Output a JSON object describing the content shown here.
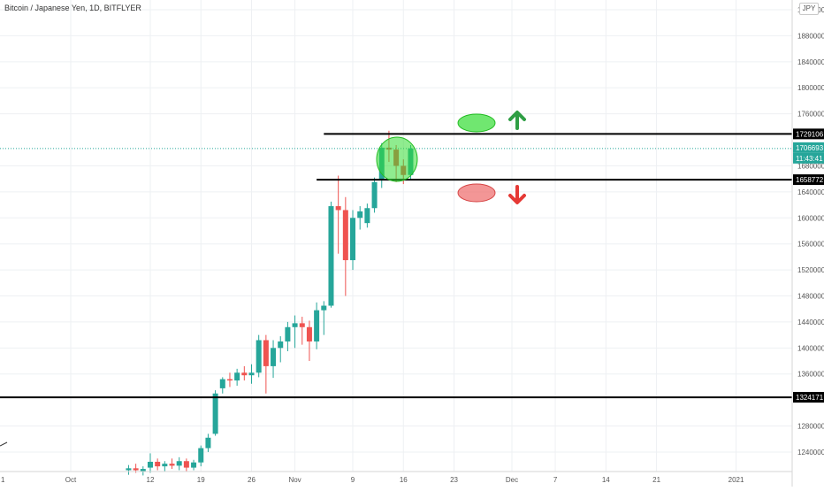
{
  "header": {
    "symbol_title": "Bitcoin / Japanese Yen, 1D, BITFLYER",
    "currency_label": "JPY"
  },
  "colors": {
    "up": "#26a69a",
    "down": "#ef5350",
    "hline": "#000000",
    "grid": "#eef0f3",
    "axis_text": "#555555",
    "last_price": "#26a69a",
    "green_marker": "#33dd33",
    "red_marker": "#ee6a6a",
    "arrow_up": "#2e9e44",
    "arrow_down": "#e53935"
  },
  "chart_data": {
    "type": "candlestick",
    "title": "Bitcoin / Japanese Yen, 1D, BITFLYER",
    "ylabel": "JPY",
    "ylim": [
      1210000,
      1935000
    ],
    "y_ticks": [
      1240000,
      1280000,
      1360000,
      1400000,
      1440000,
      1480000,
      1520000,
      1560000,
      1600000,
      1640000,
      1680000,
      1760000,
      1800000,
      1840000,
      1880000,
      1920000
    ],
    "x_tick_labels": [
      {
        "label": "Oct",
        "day": 0
      },
      {
        "label": "12",
        "day": 11
      },
      {
        "label": "19",
        "day": 18
      },
      {
        "label": "26",
        "day": 25
      },
      {
        "label": "Nov",
        "day": 31
      },
      {
        "label": "9",
        "day": 39
      },
      {
        "label": "16",
        "day": 46
      },
      {
        "label": "23",
        "day": 53
      },
      {
        "label": "Dec",
        "day": 61
      },
      {
        "label": "7",
        "day": 67
      },
      {
        "label": "14",
        "day": 74
      },
      {
        "label": "21",
        "day": 81
      },
      {
        "label": "2021",
        "day": 92
      }
    ],
    "first_axis_label": "1",
    "grid": true,
    "candles": [
      {
        "day": 8,
        "o": 1212000,
        "h": 1220000,
        "l": 1205000,
        "c": 1215000
      },
      {
        "day": 9,
        "o": 1215000,
        "h": 1222000,
        "l": 1208000,
        "c": 1212000
      },
      {
        "day": 10,
        "o": 1210000,
        "h": 1218000,
        "l": 1204000,
        "c": 1214000
      },
      {
        "day": 11,
        "o": 1216000,
        "h": 1238000,
        "l": 1208000,
        "c": 1225000
      },
      {
        "day": 12,
        "o": 1225000,
        "h": 1230000,
        "l": 1212000,
        "c": 1218000
      },
      {
        "day": 13,
        "o": 1218000,
        "h": 1226000,
        "l": 1210000,
        "c": 1222000
      },
      {
        "day": 14,
        "o": 1222000,
        "h": 1230000,
        "l": 1214000,
        "c": 1219000
      },
      {
        "day": 15,
        "o": 1219000,
        "h": 1232000,
        "l": 1212000,
        "c": 1226000
      },
      {
        "day": 16,
        "o": 1226000,
        "h": 1230000,
        "l": 1210000,
        "c": 1216000
      },
      {
        "day": 17,
        "o": 1216000,
        "h": 1228000,
        "l": 1212000,
        "c": 1224000
      },
      {
        "day": 18,
        "o": 1224000,
        "h": 1250000,
        "l": 1218000,
        "c": 1246000
      },
      {
        "day": 19,
        "o": 1246000,
        "h": 1268000,
        "l": 1240000,
        "c": 1262000
      },
      {
        "day": 20,
        "o": 1268000,
        "h": 1335000,
        "l": 1265000,
        "c": 1330000
      },
      {
        "day": 21,
        "o": 1338000,
        "h": 1355000,
        "l": 1330000,
        "c": 1352000
      },
      {
        "day": 22,
        "o": 1352000,
        "h": 1362000,
        "l": 1340000,
        "c": 1350000
      },
      {
        "day": 23,
        "o": 1350000,
        "h": 1368000,
        "l": 1342000,
        "c": 1362000
      },
      {
        "day": 24,
        "o": 1362000,
        "h": 1372000,
        "l": 1350000,
        "c": 1358000
      },
      {
        "day": 25,
        "o": 1358000,
        "h": 1375000,
        "l": 1345000,
        "c": 1362000
      },
      {
        "day": 26,
        "o": 1362000,
        "h": 1420000,
        "l": 1355000,
        "c": 1412000
      },
      {
        "day": 27,
        "o": 1412000,
        "h": 1420000,
        "l": 1330000,
        "c": 1372000
      },
      {
        "day": 28,
        "o": 1372000,
        "h": 1412000,
        "l": 1354000,
        "c": 1400000
      },
      {
        "day": 29,
        "o": 1400000,
        "h": 1418000,
        "l": 1378000,
        "c": 1410000
      },
      {
        "day": 30,
        "o": 1410000,
        "h": 1440000,
        "l": 1395000,
        "c": 1432000
      },
      {
        "day": 31,
        "o": 1432000,
        "h": 1450000,
        "l": 1400000,
        "c": 1438000
      },
      {
        "day": 32,
        "o": 1438000,
        "h": 1448000,
        "l": 1405000,
        "c": 1432000
      },
      {
        "day": 33,
        "o": 1432000,
        "h": 1442000,
        "l": 1380000,
        "c": 1410000
      },
      {
        "day": 34,
        "o": 1410000,
        "h": 1470000,
        "l": 1398000,
        "c": 1458000
      },
      {
        "day": 35,
        "o": 1458000,
        "h": 1472000,
        "l": 1420000,
        "c": 1465000
      },
      {
        "day": 36,
        "o": 1465000,
        "h": 1625000,
        "l": 1462000,
        "c": 1618000
      },
      {
        "day": 37,
        "o": 1618000,
        "h": 1665000,
        "l": 1545000,
        "c": 1612000
      },
      {
        "day": 38,
        "o": 1612000,
        "h": 1632000,
        "l": 1480000,
        "c": 1535000
      },
      {
        "day": 39,
        "o": 1535000,
        "h": 1612000,
        "l": 1520000,
        "c": 1600000
      },
      {
        "day": 40,
        "o": 1600000,
        "h": 1618000,
        "l": 1582000,
        "c": 1610000
      },
      {
        "day": 41,
        "o": 1592000,
        "h": 1622000,
        "l": 1585000,
        "c": 1615000
      },
      {
        "day": 42,
        "o": 1615000,
        "h": 1662000,
        "l": 1608000,
        "c": 1655000
      },
      {
        "day": 43,
        "o": 1658000,
        "h": 1715000,
        "l": 1646000,
        "c": 1708000
      },
      {
        "day": 44,
        "o": 1708000,
        "h": 1734000,
        "l": 1686000,
        "c": 1705000
      },
      {
        "day": 45,
        "o": 1705000,
        "h": 1712000,
        "l": 1655000,
        "c": 1680000
      },
      {
        "day": 46,
        "o": 1680000,
        "h": 1690000,
        "l": 1652000,
        "c": 1666000
      },
      {
        "day": 47,
        "o": 1666000,
        "h": 1712000,
        "l": 1660000,
        "c": 1706693
      }
    ],
    "horizontal_levels": [
      {
        "value": 1729106,
        "label": "1729106",
        "from_day": 35
      },
      {
        "value": 1658772,
        "label": "1658772",
        "from_day": 34
      },
      {
        "value": 1324171,
        "label": "1324171",
        "from_day": -11
      }
    ],
    "last_price": {
      "value": 1706693,
      "label": "1706693",
      "countdown": "11:43:41"
    },
    "annotations": [
      {
        "shape": "ellipse",
        "color": "green",
        "meaning": "bullish"
      },
      {
        "shape": "arrow",
        "direction": "up",
        "color": "green"
      },
      {
        "shape": "ellipse",
        "color": "red",
        "meaning": "bearish"
      },
      {
        "shape": "arrow",
        "direction": "down",
        "color": "red"
      }
    ]
  }
}
